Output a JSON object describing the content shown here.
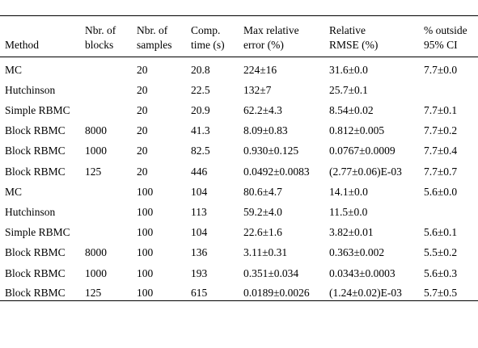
{
  "table": {
    "headers": {
      "method": [
        "",
        "Method"
      ],
      "blocks": [
        "Nbr. of",
        "blocks"
      ],
      "samples": [
        "Nbr. of",
        "samples"
      ],
      "time": [
        "Comp.",
        "time (s)"
      ],
      "maxerr": [
        "Max relative",
        "error (%)"
      ],
      "rmse": [
        "Relative",
        "RMSE (%)"
      ],
      "ci": [
        "% outside",
        "95% CI"
      ]
    },
    "rows": [
      {
        "method": "MC",
        "blocks": "",
        "samples": "20",
        "time": "20.8",
        "maxerr": "224±16",
        "rmse": "31.6±0.0",
        "ci": "7.7±0.0"
      },
      {
        "method": "Hutchinson",
        "blocks": "",
        "samples": "20",
        "time": "22.5",
        "maxerr": "132±7",
        "rmse": "25.7±0.1",
        "ci": ""
      },
      {
        "method": "Simple RBMC",
        "blocks": "",
        "samples": "20",
        "time": "20.9",
        "maxerr": "62.2±4.3",
        "rmse": "8.54±0.02",
        "ci": "7.7±0.1"
      },
      {
        "method": "Block RBMC",
        "blocks": "8000",
        "samples": "20",
        "time": "41.3",
        "maxerr": "8.09±0.83",
        "rmse": "0.812±0.005",
        "ci": "7.7±0.2"
      },
      {
        "method": "Block RBMC",
        "blocks": "1000",
        "samples": "20",
        "time": "82.5",
        "maxerr": "0.930±0.125",
        "rmse": "0.0767±0.0009",
        "ci": "7.7±0.4"
      },
      {
        "method": "Block RBMC",
        "blocks": "125",
        "samples": "20",
        "time": "446",
        "maxerr": "0.0492±0.0083",
        "rmse": "(2.77±0.06)E-03",
        "ci": "7.7±0.7"
      },
      {
        "method": "MC",
        "blocks": "",
        "samples": "100",
        "time": "104",
        "maxerr": "80.6±4.7",
        "rmse": "14.1±0.0",
        "ci": "5.6±0.0"
      },
      {
        "method": "Hutchinson",
        "blocks": "",
        "samples": "100",
        "time": "113",
        "maxerr": "59.2±4.0",
        "rmse": "11.5±0.0",
        "ci": ""
      },
      {
        "method": "Simple RBMC",
        "blocks": "",
        "samples": "100",
        "time": "104",
        "maxerr": "22.6±1.6",
        "rmse": "3.82±0.01",
        "ci": "5.6±0.1"
      },
      {
        "method": "Block RBMC",
        "blocks": "8000",
        "samples": "100",
        "time": "136",
        "maxerr": "3.11±0.31",
        "rmse": "0.363±0.002",
        "ci": "5.5±0.2"
      },
      {
        "method": "Block RBMC",
        "blocks": "1000",
        "samples": "100",
        "time": "193",
        "maxerr": "0.351±0.034",
        "rmse": "0.0343±0.0003",
        "ci": "5.6±0.3"
      },
      {
        "method": "Block RBMC",
        "blocks": "125",
        "samples": "100",
        "time": "615",
        "maxerr": "0.0189±0.0026",
        "rmse": "(1.24±0.02)E-03",
        "ci": "5.7±0.5"
      }
    ]
  }
}
